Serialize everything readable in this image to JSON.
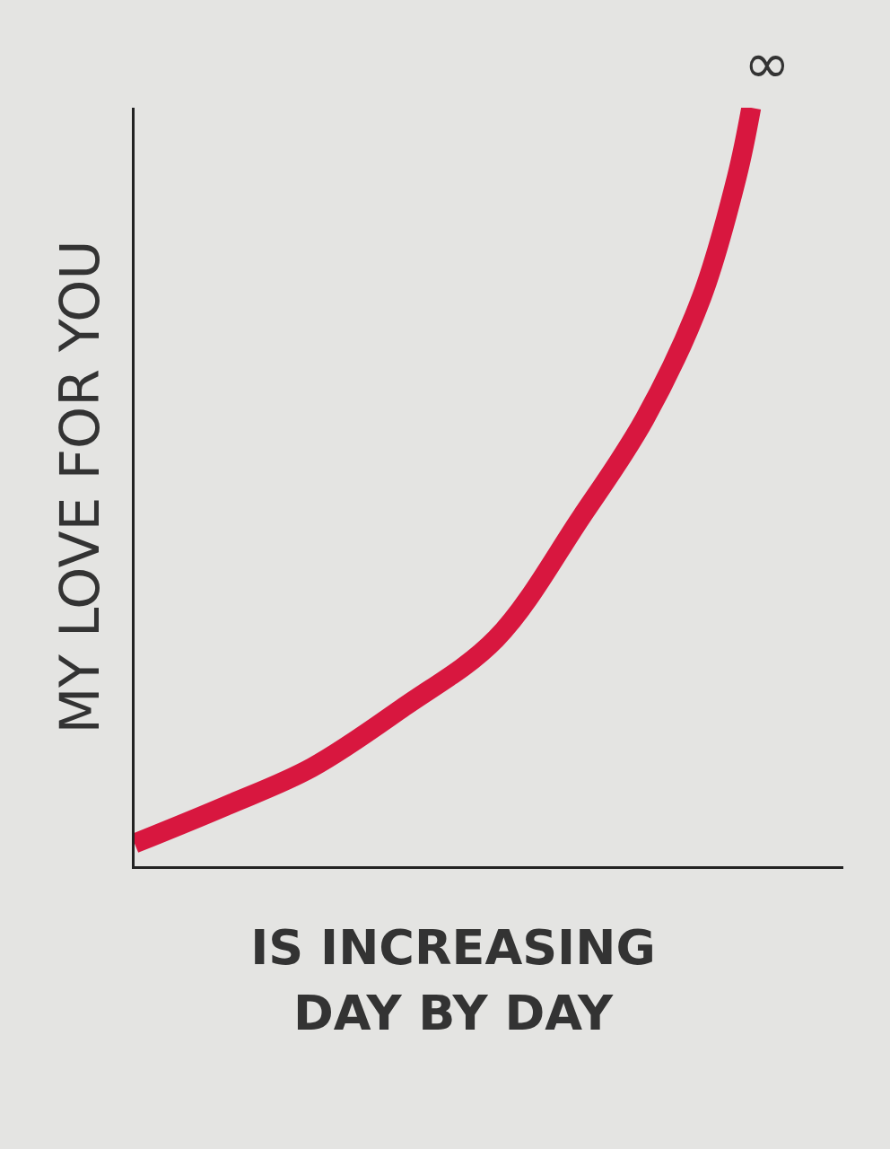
{
  "chart_data": {
    "type": "line",
    "y_label": "MY LOVE FOR YOU",
    "x_label": "IS INCREASING DAY BY DAY",
    "x": [
      0,
      1.3,
      2.5,
      3.8,
      5.1,
      6.3,
      7.2,
      8,
      8.5,
      8.7
    ],
    "values": [
      0.3,
      0.8,
      1.3,
      2.1,
      3.0,
      4.6,
      5.9,
      7.5,
      9.1,
      10.0
    ],
    "color": "#d8173f",
    "xlim": [
      0,
      10
    ],
    "ylim": [
      0,
      10
    ],
    "xticks": [],
    "yticks": [],
    "tick_labels": false,
    "grid": false,
    "annotations": [
      {
        "x": 8.7,
        "y": 10.0,
        "text": "∞"
      }
    ]
  }
}
